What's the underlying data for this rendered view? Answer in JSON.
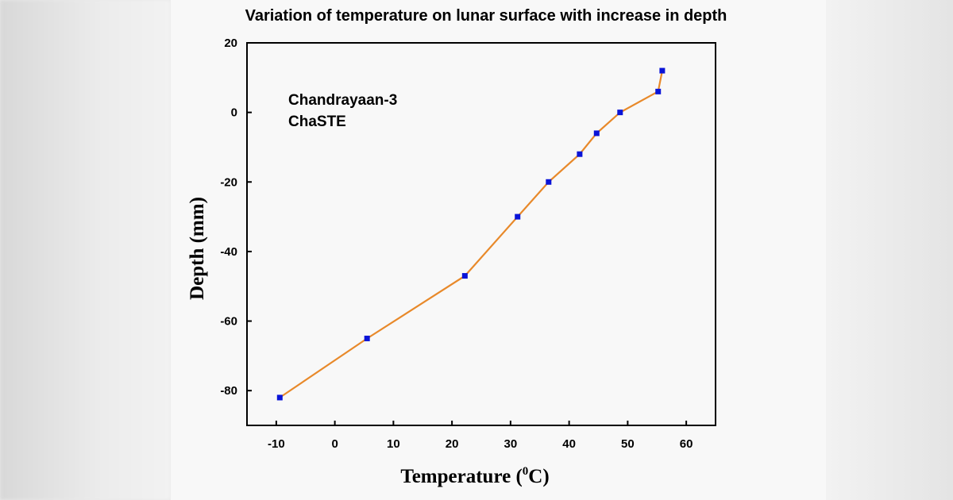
{
  "chart_data": {
    "type": "line",
    "title": "Variation of temperature on lunar surface with increase in depth",
    "xlabel": "Temperature (",
    "xlabel_sup": "0",
    "xlabel_end": "C)",
    "ylabel": "Depth (mm)",
    "annotations": [
      "Chandrayaan-3",
      "ChaSTE"
    ],
    "xlim": [
      -15,
      65
    ],
    "ylim": [
      -90,
      20
    ],
    "xticks": [
      -10,
      0,
      10,
      20,
      30,
      40,
      50,
      60
    ],
    "yticks": [
      20,
      0,
      -20,
      -40,
      -60,
      -80
    ],
    "grid": false,
    "series": [
      {
        "x": [
          -9.4,
          5.5,
          22.2,
          31.2,
          36.5,
          41.8,
          44.7,
          48.7,
          55.2,
          55.9
        ],
        "y": [
          -82,
          -65,
          -47,
          -30,
          -20,
          -12,
          -6,
          0,
          6,
          12
        ],
        "line_color": "#e8892a",
        "marker_color": "#0a14d8",
        "marker": "square"
      }
    ]
  }
}
